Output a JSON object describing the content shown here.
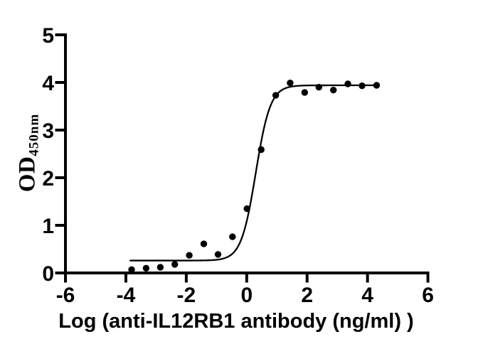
{
  "figure": {
    "background_color": "#ffffff",
    "foreground_color": "#000000"
  },
  "chart_data": {
    "type": "scatter",
    "title": "",
    "xlabel": "Log (anti-IL12RB1 antibody (ng/ml) )",
    "ylabel_main": "OD",
    "ylabel_subscript": "450nm",
    "xlim": [
      -6,
      6
    ],
    "ylim": [
      0,
      5
    ],
    "x_ticks": [
      -6,
      -4,
      -2,
      0,
      2,
      4,
      6
    ],
    "y_ticks": [
      0,
      1,
      2,
      3,
      4,
      5
    ],
    "grid": false,
    "legend_position": "none",
    "colors": {
      "foreground": "#000000",
      "background": "#ffffff"
    },
    "series": [
      {
        "name": "anti-IL12RB1 antibody",
        "marker": "filled-circle",
        "points": [
          {
            "x": -3.81,
            "y": 0.07
          },
          {
            "x": -3.33,
            "y": 0.1
          },
          {
            "x": -2.86,
            "y": 0.12
          },
          {
            "x": -2.38,
            "y": 0.18
          },
          {
            "x": -1.9,
            "y": 0.37
          },
          {
            "x": -1.42,
            "y": 0.61
          },
          {
            "x": -0.95,
            "y": 0.39
          },
          {
            "x": -0.47,
            "y": 0.76
          },
          {
            "x": 0.01,
            "y": 1.35
          },
          {
            "x": 0.48,
            "y": 2.59
          },
          {
            "x": 0.96,
            "y": 3.73
          },
          {
            "x": 1.44,
            "y": 3.99
          },
          {
            "x": 1.92,
            "y": 3.79
          },
          {
            "x": 2.39,
            "y": 3.9
          },
          {
            "x": 2.87,
            "y": 3.84
          },
          {
            "x": 3.35,
            "y": 3.97
          },
          {
            "x": 3.82,
            "y": 3.93
          },
          {
            "x": 4.3,
            "y": 3.94
          }
        ]
      }
    ],
    "fit_curve": {
      "model": "4PL sigmoidal dose-response",
      "bottom": 0.26,
      "top": 3.94,
      "log_ec50": 0.3,
      "hill_slope": 1.8,
      "x_start": -3.85,
      "x_end": 4.33
    }
  }
}
